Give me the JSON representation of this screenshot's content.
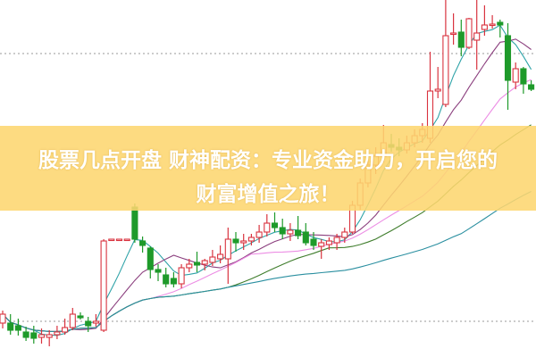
{
  "banner": {
    "line1": "股票几点开盘 财神配资：专业资金助力，开启您的",
    "line2": "财富增值之旅！",
    "background": "#fdd670"
  },
  "chart_data": {
    "type": "candlestick",
    "up_color": "#d9333f",
    "down_color": "#1e9a2a",
    "grid": "dotted horizontal lines",
    "ylim": [
      0,
      400
    ],
    "candles_ohlc": [
      [
        38,
        52,
        32,
        48
      ],
      [
        38,
        48,
        25,
        30
      ],
      [
        35,
        43,
        24,
        30
      ],
      [
        28,
        34,
        18,
        22
      ],
      [
        27,
        35,
        15,
        21
      ],
      [
        22,
        32,
        15,
        25
      ],
      [
        22,
        30,
        12,
        25
      ],
      [
        25,
        35,
        20,
        28
      ],
      [
        28,
        43,
        25,
        33
      ],
      [
        33,
        55,
        30,
        48
      ],
      [
        46,
        50,
        42,
        44
      ],
      [
        40,
        45,
        28,
        35
      ],
      [
        38,
        48,
        34,
        40
      ],
      [
        30,
        132,
        28,
        130
      ],
      [
        132,
        132,
        132,
        132
      ],
      [
        132,
        132,
        132,
        132
      ],
      [
        132,
        132,
        132,
        132
      ],
      [
        168,
        172,
        128,
        132
      ],
      [
        130,
        135,
        117,
        125
      ],
      [
        122,
        124,
        88,
        98
      ],
      [
        98,
        104,
        85,
        95
      ],
      [
        92,
        100,
        78,
        82
      ],
      [
        88,
        95,
        78,
        82
      ],
      [
        82,
        104,
        77,
        100
      ],
      [
        100,
        110,
        95,
        104
      ],
      [
        106,
        118,
        95,
        103
      ],
      [
        104,
        110,
        97,
        108
      ],
      [
        106,
        120,
        102,
        112
      ],
      [
        110,
        125,
        105,
        115
      ],
      [
        110,
        145,
        82,
        132
      ],
      [
        132,
        140,
        118,
        128
      ],
      [
        128,
        138,
        120,
        130
      ],
      [
        130,
        138,
        125,
        134
      ],
      [
        134,
        148,
        128,
        140
      ],
      [
        140,
        160,
        135,
        150
      ],
      [
        150,
        162,
        140,
        145
      ],
      [
        145,
        155,
        132,
        138
      ],
      [
        138,
        150,
        130,
        142
      ],
      [
        142,
        158,
        132,
        136
      ],
      [
        140,
        150,
        125,
        128
      ],
      [
        132,
        140,
        120,
        125
      ],
      [
        124,
        132,
        110,
        128
      ],
      [
        126,
        134,
        120,
        130
      ],
      [
        128,
        138,
        120,
        134
      ],
      [
        134,
        145,
        128,
        140
      ],
      [
        140,
        175,
        138,
        170
      ],
      [
        170,
        200,
        165,
        195
      ],
      [
        195,
        220,
        190,
        215
      ],
      [
        215,
        235,
        205,
        225
      ],
      [
        225,
        260,
        218,
        240
      ],
      [
        238,
        250,
        230,
        235
      ],
      [
        235,
        245,
        225,
        232
      ],
      [
        232,
        248,
        228,
        240
      ],
      [
        240,
        255,
        235,
        248
      ],
      [
        248,
        262,
        240,
        255
      ],
      [
        245,
        342,
        240,
        298
      ],
      [
        298,
        325,
        290,
        300
      ],
      [
        283,
        400,
        280,
        360
      ],
      [
        363,
        385,
        350,
        363
      ],
      [
        364,
        378,
        337,
        347
      ],
      [
        347,
        380,
        345,
        379
      ],
      [
        355,
        400,
        322,
        363
      ],
      [
        367,
        394,
        360,
        372
      ],
      [
        373,
        383,
        368,
        373
      ],
      [
        375,
        378,
        358,
        372
      ],
      [
        360,
        374,
        277,
        310
      ],
      [
        308,
        330,
        300,
        323
      ],
      [
        323,
        325,
        295,
        306
      ],
      [
        305,
        310,
        298,
        300
      ]
    ],
    "moving_averages": [
      {
        "period": 5,
        "color": "#2fa3a8"
      },
      {
        "period": 10,
        "color": "#8b3f7e"
      },
      {
        "period": 20,
        "color": "#ec8de4"
      },
      {
        "period": 30,
        "color": "#3f7d2c"
      },
      {
        "period": 60,
        "color": "#2a8fa0"
      }
    ]
  }
}
